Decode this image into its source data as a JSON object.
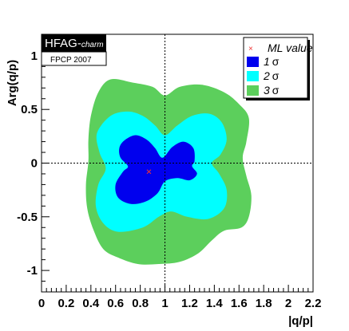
{
  "chart_data": {
    "type": "contour",
    "xlabel": "|q/p|",
    "ylabel": "Arg(q/p)",
    "xlim": [
      0,
      2.2
    ],
    "ylim": [
      -1.2,
      1.2
    ],
    "x_ticks": [
      "0",
      "0.2",
      "0.4",
      "0.6",
      "0.8",
      "1",
      "1.2",
      "1.4",
      "1.6",
      "1.8",
      "2",
      "2.2"
    ],
    "y_ticks": [
      "-1",
      "-0.5",
      "0",
      "0.5",
      "1"
    ],
    "ml_value": {
      "label": "ML value",
      "x": 0.87,
      "y": -0.08
    },
    "reference_lines": {
      "x": 1,
      "y": 0
    },
    "badge": {
      "brand": "HFAG-",
      "brand_sub": "charm",
      "conference": "FPCP 2007"
    },
    "series": [
      {
        "name": "3 σ",
        "label_number": "3",
        "label_symbol": "σ",
        "color": "#5ccf5c",
        "polygon": [
          [
            0.56,
            0.78
          ],
          [
            0.74,
            0.75
          ],
          [
            0.9,
            0.71
          ],
          [
            1.0,
            0.63
          ],
          [
            1.12,
            0.71
          ],
          [
            1.3,
            0.73
          ],
          [
            1.48,
            0.66
          ],
          [
            1.6,
            0.55
          ],
          [
            1.68,
            0.42
          ],
          [
            1.66,
            0.2
          ],
          [
            1.63,
            0.05
          ],
          [
            1.66,
            -0.12
          ],
          [
            1.7,
            -0.3
          ],
          [
            1.68,
            -0.5
          ],
          [
            1.62,
            -0.6
          ],
          [
            1.48,
            -0.63
          ],
          [
            1.38,
            -0.72
          ],
          [
            1.27,
            -0.84
          ],
          [
            1.12,
            -0.92
          ],
          [
            0.95,
            -0.94
          ],
          [
            0.78,
            -0.94
          ],
          [
            0.62,
            -0.88
          ],
          [
            0.5,
            -0.8
          ],
          [
            0.42,
            -0.62
          ],
          [
            0.37,
            -0.42
          ],
          [
            0.36,
            -0.2
          ],
          [
            0.38,
            0.02
          ],
          [
            0.38,
            0.22
          ],
          [
            0.4,
            0.44
          ],
          [
            0.46,
            0.66
          ]
        ]
      },
      {
        "name": "2 σ",
        "label_number": "2",
        "label_symbol": "σ",
        "color": "#00ffff",
        "polygon": [
          [
            0.56,
            0.44
          ],
          [
            0.7,
            0.48
          ],
          [
            0.82,
            0.44
          ],
          [
            0.92,
            0.35
          ],
          [
            1.0,
            0.26
          ],
          [
            1.1,
            0.35
          ],
          [
            1.22,
            0.44
          ],
          [
            1.36,
            0.46
          ],
          [
            1.46,
            0.38
          ],
          [
            1.5,
            0.22
          ],
          [
            1.45,
            0.08
          ],
          [
            1.38,
            0.0
          ],
          [
            1.44,
            -0.1
          ],
          [
            1.5,
            -0.25
          ],
          [
            1.48,
            -0.42
          ],
          [
            1.35,
            -0.52
          ],
          [
            1.18,
            -0.5
          ],
          [
            1.05,
            -0.45
          ],
          [
            0.95,
            -0.5
          ],
          [
            0.82,
            -0.6
          ],
          [
            0.62,
            -0.64
          ],
          [
            0.5,
            -0.56
          ],
          [
            0.44,
            -0.4
          ],
          [
            0.46,
            -0.2
          ],
          [
            0.52,
            -0.05
          ],
          [
            0.47,
            0.1
          ],
          [
            0.45,
            0.28
          ]
        ]
      },
      {
        "name": "1 σ",
        "label_number": "1",
        "label_symbol": "σ",
        "color": "#0000ee",
        "polygon": [
          [
            0.67,
            0.21
          ],
          [
            0.76,
            0.26
          ],
          [
            0.85,
            0.22
          ],
          [
            0.92,
            0.14
          ],
          [
            0.98,
            0.05
          ],
          [
            1.06,
            0.15
          ],
          [
            1.15,
            0.2
          ],
          [
            1.23,
            0.14
          ],
          [
            1.24,
            0.02
          ],
          [
            1.22,
            -0.03
          ],
          [
            1.26,
            -0.1
          ],
          [
            1.2,
            -0.16
          ],
          [
            1.1,
            -0.14
          ],
          [
            1.0,
            -0.17
          ],
          [
            0.94,
            -0.28
          ],
          [
            0.84,
            -0.36
          ],
          [
            0.72,
            -0.38
          ],
          [
            0.62,
            -0.32
          ],
          [
            0.6,
            -0.2
          ],
          [
            0.66,
            -0.08
          ],
          [
            0.7,
            -0.03
          ],
          [
            0.64,
            0.05
          ],
          [
            0.63,
            0.14
          ]
        ]
      }
    ]
  }
}
